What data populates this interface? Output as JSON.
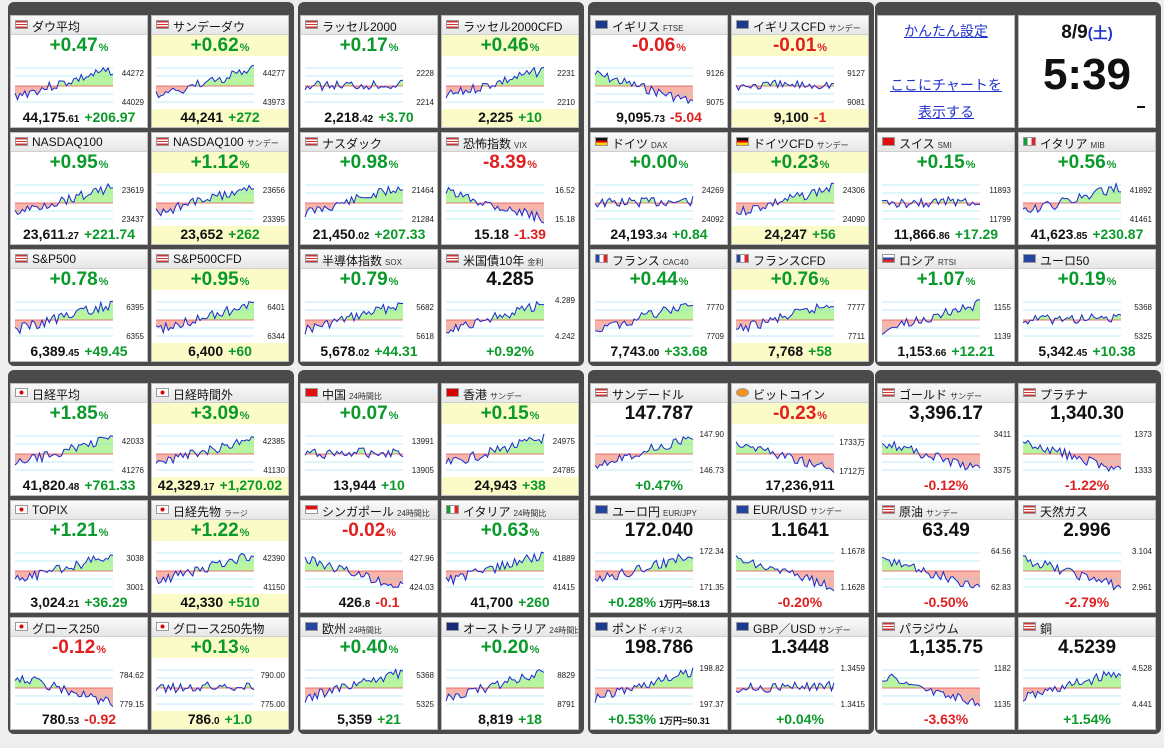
{
  "settings": {
    "simple_setting_link": "かんたん設定",
    "chart_link_line1": "ここにチャートを",
    "chart_link_line2": "表示する"
  },
  "clock": {
    "date": "8/9",
    "weekday": "(土)",
    "time": "5:39"
  },
  "colors": {
    "up": "#0a9a2a",
    "down": "#e02020",
    "up_fill": "#b8f5a0",
    "down_fill": "#f8b4a8",
    "highlight": "#fbfbc8"
  },
  "tiles": [
    {
      "name": "ダウ平均",
      "sub": "",
      "flag": "us",
      "pct": "+0.47",
      "dir": "up",
      "hl": false,
      "hi": "44272",
      "lo": "44029",
      "price": "44,175",
      "dec": ".61",
      "chg": "+206.97",
      "cdir": "up",
      "bhl": false,
      "trend": "up"
    },
    {
      "name": "サンデーダウ",
      "sub": "",
      "flag": "us",
      "pct": "+0.62",
      "dir": "up",
      "hl": true,
      "hi": "44277",
      "lo": "43973",
      "price": "44,241",
      "dec": "",
      "chg": "+272",
      "cdir": "up",
      "bhl": true,
      "trend": "up"
    },
    {
      "name": "ラッセル2000",
      "sub": "",
      "flag": "us",
      "pct": "+0.17",
      "dir": "up",
      "hl": false,
      "hi": "2228",
      "lo": "2214",
      "price": "2,218",
      "dec": ".42",
      "chg": "+3.70",
      "cdir": "up",
      "bhl": false,
      "trend": "flat"
    },
    {
      "name": "ラッセル2000CFD",
      "sub": "",
      "flag": "us",
      "pct": "+0.46",
      "dir": "up",
      "hl": true,
      "hi": "2231",
      "lo": "2210",
      "price": "2,225",
      "dec": "",
      "chg": "+10",
      "cdir": "up",
      "bhl": true,
      "trend": "up"
    },
    {
      "name": "イギリス",
      "sub": "FTSE",
      "flag": "uk",
      "pct": "-0.06",
      "dir": "down",
      "hl": false,
      "hi": "9126",
      "lo": "9075",
      "price": "9,095",
      "dec": ".73",
      "chg": "-5.04",
      "cdir": "down",
      "bhl": false,
      "trend": "down"
    },
    {
      "name": "イギリスCFD",
      "sub": "サンデー",
      "flag": "uk",
      "pct": "-0.01",
      "dir": "down",
      "hl": true,
      "hi": "9127",
      "lo": "9081",
      "price": "9,100",
      "dec": "",
      "chg": "-1",
      "cdir": "down",
      "bhl": true,
      "trend": "flat"
    },
    {
      "name": "NASDAQ100",
      "sub": "",
      "flag": "us",
      "pct": "+0.95",
      "dir": "up",
      "hl": false,
      "hi": "23619",
      "lo": "23437",
      "price": "23,611",
      "dec": ".27",
      "chg": "+221.74",
      "cdir": "up",
      "bhl": false,
      "trend": "up"
    },
    {
      "name": "NASDAQ100",
      "sub": "サンデー",
      "flag": "us",
      "pct": "+1.12",
      "dir": "up",
      "hl": true,
      "hi": "23656",
      "lo": "23395",
      "price": "23,652",
      "dec": "",
      "chg": "+262",
      "cdir": "up",
      "bhl": true,
      "trend": "up"
    },
    {
      "name": "ナスダック",
      "sub": "",
      "flag": "us",
      "pct": "+0.98",
      "dir": "up",
      "hl": false,
      "hi": "21464",
      "lo": "21284",
      "price": "21,450",
      "dec": ".02",
      "chg": "+207.33",
      "cdir": "up",
      "bhl": false,
      "trend": "up"
    },
    {
      "name": "恐怖指数",
      "sub": "VIX",
      "flag": "us",
      "pct": "-8.39",
      "dir": "down",
      "hl": false,
      "hi": "16.52",
      "lo": "15.18",
      "price": "15.18",
      "dec": "",
      "chg": "-1.39",
      "cdir": "down",
      "bhl": false,
      "trend": "down"
    },
    {
      "name": "ドイツ",
      "sub": "DAX",
      "flag": "de",
      "pct": "+0.00",
      "dir": "up",
      "hl": false,
      "hi": "24269",
      "lo": "24092",
      "price": "24,193",
      "dec": ".34",
      "chg": "+0.84",
      "cdir": "up",
      "bhl": false,
      "trend": "flat"
    },
    {
      "name": "ドイツCFD",
      "sub": "サンデー",
      "flag": "de",
      "pct": "+0.23",
      "dir": "up",
      "hl": true,
      "hi": "24306",
      "lo": "24090",
      "price": "24,247",
      "dec": "",
      "chg": "+56",
      "cdir": "up",
      "bhl": true,
      "trend": "up"
    },
    {
      "name": "S&P500",
      "sub": "",
      "flag": "us",
      "pct": "+0.78",
      "dir": "up",
      "hl": false,
      "hi": "6395",
      "lo": "6355",
      "price": "6,389",
      "dec": ".45",
      "chg": "+49.45",
      "cdir": "up",
      "bhl": false,
      "trend": "up"
    },
    {
      "name": "S&P500CFD",
      "sub": "",
      "flag": "us",
      "pct": "+0.95",
      "dir": "up",
      "hl": true,
      "hi": "6401",
      "lo": "6344",
      "price": "6,400",
      "dec": "",
      "chg": "+60",
      "cdir": "up",
      "bhl": true,
      "trend": "up"
    },
    {
      "name": "半導体指数",
      "sub": "SOX",
      "flag": "us",
      "pct": "+0.79",
      "dir": "up",
      "hl": false,
      "hi": "5682",
      "lo": "5618",
      "price": "5,678",
      "dec": ".02",
      "chg": "+44.31",
      "cdir": "up",
      "bhl": false,
      "trend": "up"
    },
    {
      "name": "米国債10年",
      "sub": "金利",
      "flag": "us",
      "pct": "4.285",
      "dir": "blk",
      "hl": false,
      "hi": "4.289",
      "lo": "4.242",
      "price": "",
      "dec": "",
      "chg": "+0.92%",
      "cdir": "up",
      "bhl": false,
      "trend": "up"
    },
    {
      "name": "フランス",
      "sub": "CAC40",
      "flag": "fr",
      "pct": "+0.44",
      "dir": "up",
      "hl": false,
      "hi": "7770",
      "lo": "7709",
      "price": "7,743",
      "dec": ".00",
      "chg": "+33.68",
      "cdir": "up",
      "bhl": false,
      "trend": "up"
    },
    {
      "name": "フランスCFD",
      "sub": "",
      "flag": "fr",
      "pct": "+0.76",
      "dir": "up",
      "hl": true,
      "hi": "7777",
      "lo": "7711",
      "price": "7,768",
      "dec": "",
      "chg": "+58",
      "cdir": "up",
      "bhl": true,
      "trend": "up"
    },
    {
      "name": "スイス",
      "sub": "SMI",
      "flag": "ch",
      "pct": "+0.15",
      "dir": "up",
      "hl": false,
      "hi": "11893",
      "lo": "11799",
      "price": "11,866",
      "dec": ".86",
      "chg": "+17.29",
      "cdir": "up",
      "bhl": false,
      "trend": "flat"
    },
    {
      "name": "イタリア",
      "sub": "MIB",
      "flag": "it",
      "pct": "+0.56",
      "dir": "up",
      "hl": false,
      "hi": "41892",
      "lo": "41461",
      "price": "41,623",
      "dec": ".85",
      "chg": "+230.87",
      "cdir": "up",
      "bhl": false,
      "trend": "up"
    },
    {
      "name": "ロシア",
      "sub": "RTSI",
      "flag": "ru",
      "pct": "+1.07",
      "dir": "up",
      "hl": false,
      "hi": "1155",
      "lo": "1139",
      "price": "1,153",
      "dec": ".66",
      "chg": "+12.21",
      "cdir": "up",
      "bhl": false,
      "trend": "up"
    },
    {
      "name": "ユーロ50",
      "sub": "",
      "flag": "eu",
      "pct": "+0.19",
      "dir": "up",
      "hl": false,
      "hi": "5368",
      "lo": "5325",
      "price": "5,342",
      "dec": ".45",
      "chg": "+10.38",
      "cdir": "up",
      "bhl": false,
      "trend": "flat"
    },
    {
      "name": "日経平均",
      "sub": "",
      "flag": "jp",
      "pct": "+1.85",
      "dir": "up",
      "hl": false,
      "hi": "42033",
      "lo": "41276",
      "price": "41,820",
      "dec": ".48",
      "chg": "+761.33",
      "cdir": "up",
      "bhl": false,
      "trend": "up"
    },
    {
      "name": "日経時間外",
      "sub": "",
      "flag": "jp",
      "pct": "+3.09",
      "dir": "up",
      "hl": true,
      "hi": "42385",
      "lo": "41130",
      "price": "42,329",
      "dec": ".17",
      "chg": "+1,270.02",
      "cdir": "up",
      "bhl": true,
      "trend": "up"
    },
    {
      "name": "TOPIX",
      "sub": "",
      "flag": "jp",
      "pct": "+1.21",
      "dir": "up",
      "hl": false,
      "hi": "3038",
      "lo": "3001",
      "price": "3,024",
      "dec": ".21",
      "chg": "+36.29",
      "cdir": "up",
      "bhl": false,
      "trend": "up"
    },
    {
      "name": "日経先物",
      "sub": "ラージ",
      "flag": "jp",
      "pct": "+1.22",
      "dir": "up",
      "hl": true,
      "hi": "42390",
      "lo": "41150",
      "price": "42,330",
      "dec": "",
      "chg": "+510",
      "cdir": "up",
      "bhl": true,
      "trend": "up"
    },
    {
      "name": "グロース250",
      "sub": "",
      "flag": "jp",
      "pct": "-0.12",
      "dir": "down",
      "hl": false,
      "hi": "784.62",
      "lo": "779.15",
      "price": "780",
      "dec": ".53",
      "chg": "-0.92",
      "cdir": "down",
      "bhl": false,
      "trend": "down"
    },
    {
      "name": "グロース250先物",
      "sub": "",
      "flag": "jp",
      "pct": "+0.13",
      "dir": "up",
      "hl": true,
      "hi": "790.00",
      "lo": "775.00",
      "price": "786",
      "dec": ".0",
      "chg": "+1.0",
      "cdir": "up",
      "bhl": true,
      "trend": "flat"
    },
    {
      "name": "中国",
      "sub": "24時間比",
      "flag": "cn",
      "pct": "+0.07",
      "dir": "up",
      "hl": false,
      "hi": "13991",
      "lo": "13905",
      "price": "13,944",
      "dec": "",
      "chg": "+10",
      "cdir": "up",
      "bhl": false,
      "trend": "flat"
    },
    {
      "name": "香港",
      "sub": "サンデー",
      "flag": "hk",
      "pct": "+0.15",
      "dir": "up",
      "hl": true,
      "hi": "24975",
      "lo": "24785",
      "price": "24,943",
      "dec": "",
      "chg": "+38",
      "cdir": "up",
      "bhl": true,
      "trend": "up"
    },
    {
      "name": "シンガポール",
      "sub": "24時間比",
      "flag": "sg",
      "pct": "-0.02",
      "dir": "down",
      "hl": false,
      "hi": "427.96",
      "lo": "424.03",
      "price": "426",
      "dec": ".8",
      "chg": "-0.1",
      "cdir": "down",
      "bhl": false,
      "trend": "down"
    },
    {
      "name": "イタリア",
      "sub": "24時間比",
      "flag": "it",
      "pct": "+0.63",
      "dir": "up",
      "hl": false,
      "hi": "41889",
      "lo": "41415",
      "price": "41,700",
      "dec": "",
      "chg": "+260",
      "cdir": "up",
      "bhl": false,
      "trend": "up"
    },
    {
      "name": "欧州",
      "sub": "24時間比",
      "flag": "eu",
      "pct": "+0.40",
      "dir": "up",
      "hl": false,
      "hi": "5368",
      "lo": "5325",
      "price": "5,359",
      "dec": "",
      "chg": "+21",
      "cdir": "up",
      "bhl": false,
      "trend": "up"
    },
    {
      "name": "オーストラリア",
      "sub": "24時間比",
      "flag": "au",
      "pct": "+0.20",
      "dir": "up",
      "hl": false,
      "hi": "8829",
      "lo": "8791",
      "price": "8,819",
      "dec": "",
      "chg": "+18",
      "cdir": "up",
      "bhl": false,
      "trend": "up"
    },
    {
      "name": "サンデードル",
      "sub": "",
      "flag": "us",
      "pct": "147.787",
      "dir": "blk",
      "hl": false,
      "hi": "147.90",
      "lo": "146.73",
      "price": "",
      "dec": "",
      "chg": "+0.47%",
      "cdir": "up",
      "bhl": false,
      "trend": "up"
    },
    {
      "name": "ビットコイン",
      "sub": "",
      "flag": "btc",
      "pct": "-0.23",
      "dir": "down",
      "hl": true,
      "hi": "1733万",
      "lo": "1712万",
      "price": "17,236,911",
      "dec": "",
      "chg": "",
      "cdir": "down",
      "bhl": false,
      "trend": "down"
    },
    {
      "name": "ユーロ円",
      "sub": "EUR/JPY",
      "flag": "eu",
      "pct": "172.040",
      "dir": "blk",
      "hl": false,
      "hi": "172.34",
      "lo": "171.35",
      "price": "",
      "dec": "",
      "chg": "+0.28%",
      "cdir": "up",
      "bhl": false,
      "note": "1万円=58.13",
      "trend": "up"
    },
    {
      "name": "EUR/USD",
      "sub": "サンデー",
      "flag": "eu",
      "pct": "1.1641",
      "dir": "blk",
      "hl": false,
      "hi": "1.1678",
      "lo": "1.1628",
      "price": "",
      "dec": "",
      "chg": "-0.20%",
      "cdir": "down",
      "bhl": false,
      "trend": "down"
    },
    {
      "name": "ポンド",
      "sub": "イギリス",
      "flag": "uk",
      "pct": "198.786",
      "dir": "blk",
      "hl": false,
      "hi": "198.82",
      "lo": "197.37",
      "price": "",
      "dec": "",
      "chg": "+0.53%",
      "cdir": "up",
      "bhl": false,
      "note": "1万円=50.31",
      "trend": "up"
    },
    {
      "name": "GBP／USD",
      "sub": "サンデー",
      "flag": "uk",
      "pct": "1.3448",
      "dir": "blk",
      "hl": false,
      "hi": "1.3459",
      "lo": "1.3415",
      "price": "",
      "dec": "",
      "chg": "+0.04%",
      "cdir": "up",
      "bhl": false,
      "trend": "flat"
    },
    {
      "name": "ゴールド",
      "sub": "サンデー",
      "flag": "us",
      "pct": "3,396.17",
      "dir": "blk",
      "hl": false,
      "hi": "3411",
      "lo": "3375",
      "price": "",
      "dec": "",
      "chg": "-0.12%",
      "cdir": "down",
      "bhl": false,
      "trend": "down"
    },
    {
      "name": "プラチナ",
      "sub": "",
      "flag": "us",
      "pct": "1,340.30",
      "dir": "blk",
      "hl": false,
      "hi": "1373",
      "lo": "1333",
      "price": "",
      "dec": "",
      "chg": "-1.22%",
      "cdir": "down",
      "bhl": false,
      "trend": "down"
    },
    {
      "name": "原油",
      "sub": "サンデー",
      "flag": "us",
      "pct": "63.49",
      "dir": "blk",
      "hl": false,
      "hi": "64.56",
      "lo": "62.83",
      "price": "",
      "dec": "",
      "chg": "-0.50%",
      "cdir": "down",
      "bhl": false,
      "trend": "down"
    },
    {
      "name": "天然ガス",
      "sub": "",
      "flag": "us",
      "pct": "2.996",
      "dir": "blk",
      "hl": false,
      "hi": "3.104",
      "lo": "2.961",
      "price": "",
      "dec": "",
      "chg": "-2.79%",
      "cdir": "down",
      "bhl": false,
      "trend": "down"
    },
    {
      "name": "パラジウム",
      "sub": "",
      "flag": "us",
      "pct": "1,135.75",
      "dir": "blk",
      "hl": false,
      "hi": "1182",
      "lo": "1135",
      "price": "",
      "dec": "",
      "chg": "-3.63%",
      "cdir": "down",
      "bhl": false,
      "trend": "down"
    },
    {
      "name": "銅",
      "sub": "",
      "flag": "us",
      "pct": "4.5239",
      "dir": "blk",
      "hl": false,
      "hi": "4.528",
      "lo": "4.441",
      "price": "",
      "dec": "",
      "chg": "+1.54%",
      "cdir": "up",
      "bhl": false,
      "trend": "up"
    }
  ]
}
